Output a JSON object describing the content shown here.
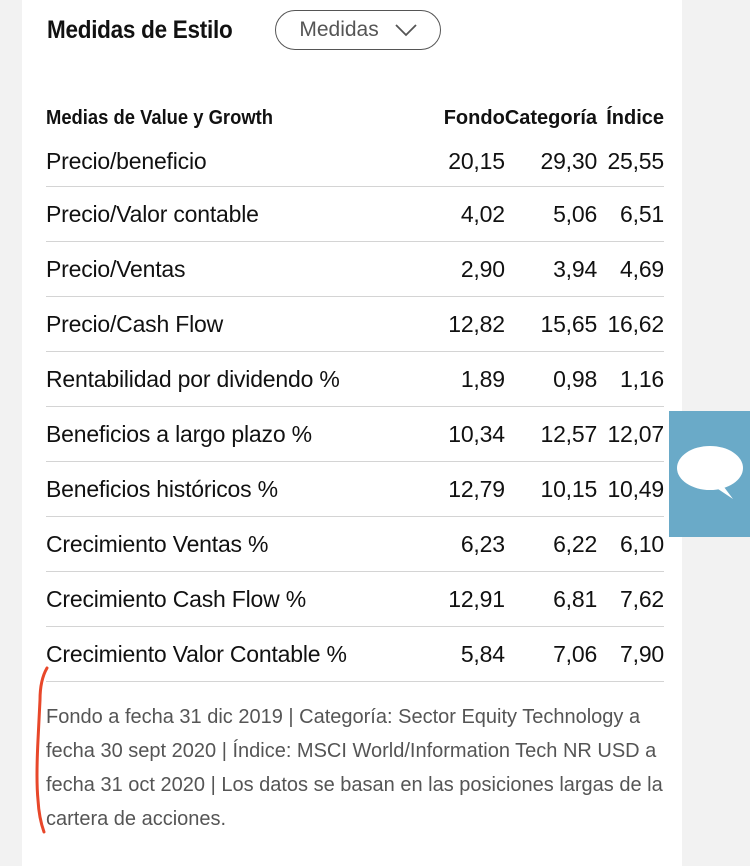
{
  "section": {
    "title": "Medidas de Estilo",
    "dropdown": {
      "selected": "Medidas",
      "icon": "chevron-down-icon"
    }
  },
  "table": {
    "headers": [
      "Medias de Value y Growth",
      "Fondo",
      "Categoría",
      "Índice"
    ],
    "rows": [
      {
        "label": "Precio/beneficio",
        "fondo": "20,15",
        "categoria": "29,30",
        "indice": "25,55"
      },
      {
        "label": "Precio/Valor contable",
        "fondo": "4,02",
        "categoria": "5,06",
        "indice": "6,51"
      },
      {
        "label": "Precio/Ventas",
        "fondo": "2,90",
        "categoria": "3,94",
        "indice": "4,69"
      },
      {
        "label": "Precio/Cash Flow",
        "fondo": "12,82",
        "categoria": "15,65",
        "indice": "16,62"
      },
      {
        "label": "Rentabilidad por dividendo %",
        "fondo": "1,89",
        "categoria": "0,98",
        "indice": "1,16"
      },
      {
        "label": "Beneficios a largo plazo %",
        "fondo": "10,34",
        "categoria": "12,57",
        "indice": "12,07"
      },
      {
        "label": "Beneficios históricos %",
        "fondo": "12,79",
        "categoria": "10,15",
        "indice": "10,49"
      },
      {
        "label": "Crecimiento Ventas %",
        "fondo": "6,23",
        "categoria": "6,22",
        "indice": "6,10"
      },
      {
        "label": "Crecimiento Cash Flow %",
        "fondo": "12,91",
        "categoria": "6,81",
        "indice": "7,62"
      },
      {
        "label": "Crecimiento Valor Contable %",
        "fondo": "5,84",
        "categoria": "7,06",
        "indice": "7,90"
      }
    ]
  },
  "footnote": "Fondo a fecha 31 dic 2019 | Categoría: Sector Equity Technology a fecha 30 sept 2020 | Índice: MSCI World/Information Tech NR USD a fecha 31 oct 2020 | Los datos se basan en las posiciones largas de la cartera de acciones.",
  "chat_widget": {
    "icon": "chat-bubble-icon",
    "color": "#6aaac8"
  },
  "annotation": {
    "icon": "red-pen-bracket-mark",
    "color": "#e8472a"
  }
}
